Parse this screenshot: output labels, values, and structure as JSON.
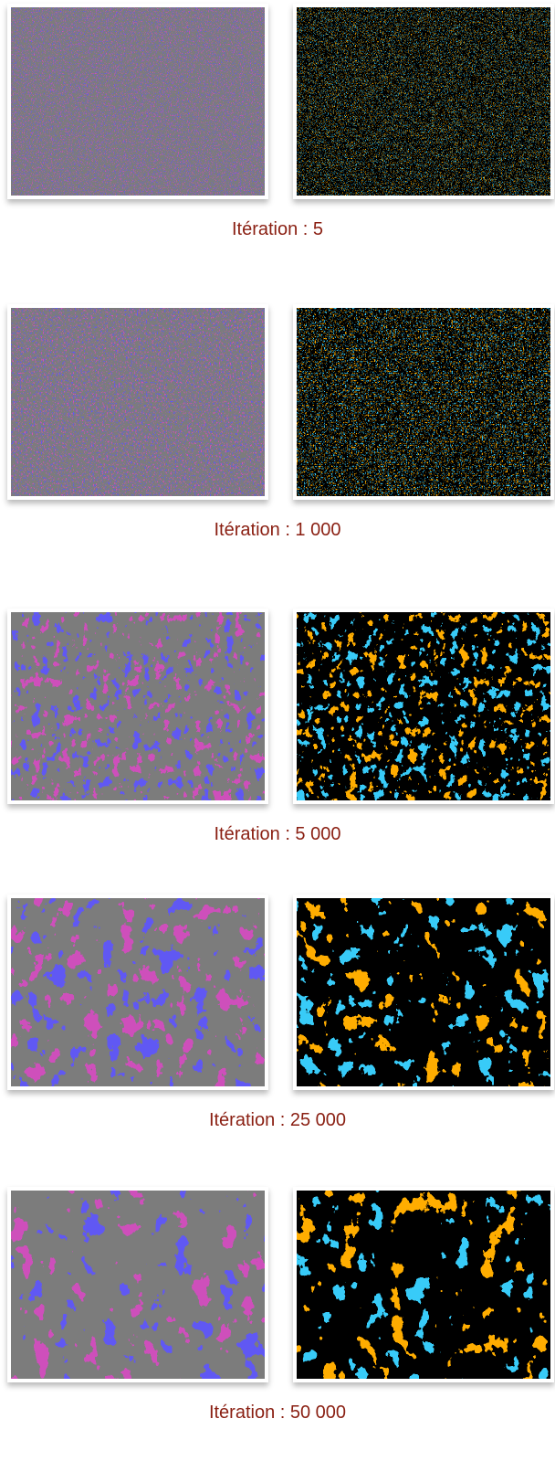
{
  "panels": [
    {
      "caption": "Itération : 5"
    },
    {
      "caption": "Itération : 1 000"
    },
    {
      "caption": "Itération : 5 000"
    },
    {
      "caption": "Itération : 25 000"
    },
    {
      "caption": "Itération : 50 000"
    }
  ]
}
